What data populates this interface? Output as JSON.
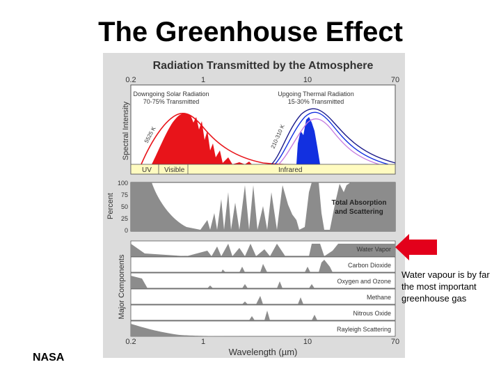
{
  "slide": {
    "title": "The Greenhouse Effect",
    "callout": "Water vapour is by far the most important greenhouse gas",
    "credit": "NASA",
    "arrow_color": "#e3001b"
  },
  "figure": {
    "title": "Radiation Transmitted by the Atmosphere",
    "top_ticks": [
      "0.2",
      "1",
      "10",
      "70"
    ],
    "bottom_ticks": [
      "0.2",
      "1",
      "10",
      "70"
    ],
    "xlabel": "Wavelength (µm)",
    "spectral_axis_label": "Spectral Intensity",
    "percent_axis_label": "Percent",
    "components_axis_label": "Major Components",
    "solar_label_line1": "Downgoing Solar Radiation",
    "solar_label_line2": "70-75% Transmitted",
    "thermal_label_line1": "Upgoing Thermal Radiation",
    "thermal_label_line2": "15-30% Transmitted",
    "solar_temp": "5525 K",
    "thermal_temp": "210-310 K",
    "bands": [
      "UV",
      "Visible",
      "Infrared"
    ],
    "percent_ticks": [
      "100",
      "75",
      "50",
      "25",
      "0"
    ],
    "total_label_line1": "Total Absorption",
    "total_label_line2": "and Scattering",
    "components": [
      "Water Vapor",
      "Carbon Dioxide",
      "Oxygen and Ozone",
      "Methane",
      "Nitrous Oxide",
      "Rayleigh Scattering"
    ],
    "colors": {
      "panel_bg": "#dcdcdc",
      "solar": "#e8141a",
      "thermal": "#1230e0",
      "absorption": "#8c8c8c",
      "band_bar": "#fffbc0"
    }
  }
}
